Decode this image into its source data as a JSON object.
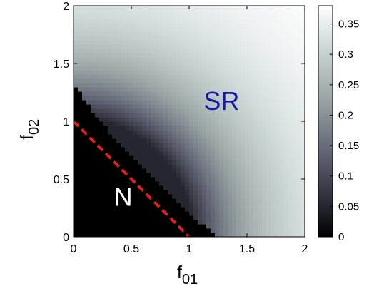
{
  "chart_data": {
    "type": "heatmap",
    "title": "",
    "xlabel": {
      "base": "f",
      "sub": "01"
    },
    "ylabel": {
      "base": "f",
      "sub": "02"
    },
    "xlim": [
      0,
      2
    ],
    "ylim": [
      0,
      2
    ],
    "xticks": [
      "0",
      "0.5",
      "1",
      "1.5",
      "2"
    ],
    "yticks": [
      "0",
      "0.5",
      "1",
      "1.5",
      "2"
    ],
    "xtick_values": [
      0,
      0.5,
      1,
      1.5,
      2
    ],
    "ytick_values": [
      0,
      0.5,
      1,
      1.5,
      2
    ],
    "colorbar": {
      "min": 0,
      "max": 0.38,
      "ticks": [
        "0",
        "0.05",
        "0.1",
        "0.15",
        "0.2",
        "0.25",
        "0.3",
        "0.35"
      ],
      "tick_values": [
        0,
        0.05,
        0.1,
        0.15,
        0.2,
        0.25,
        0.3,
        0.35
      ],
      "colormap": "gray"
    },
    "regions": [
      {
        "label": "SR",
        "color": "#1a1aa0",
        "x": 1.28,
        "y": 1.1
      },
      {
        "label": "N",
        "color": "#ffffff",
        "x": 0.43,
        "y": 0.27
      }
    ],
    "boundary": {
      "description": "N/SR phase boundary",
      "x": [
        0,
        0.02,
        0.05,
        0.12,
        0.3,
        0.6,
        0.9,
        1.1,
        1.25
      ],
      "y": [
        1.3,
        1.28,
        1.25,
        1.15,
        0.92,
        0.6,
        0.3,
        0.12,
        0
      ]
    },
    "dashed_line": {
      "color": "#e02020",
      "x": [
        0,
        1
      ],
      "y": [
        1,
        0
      ]
    }
  }
}
